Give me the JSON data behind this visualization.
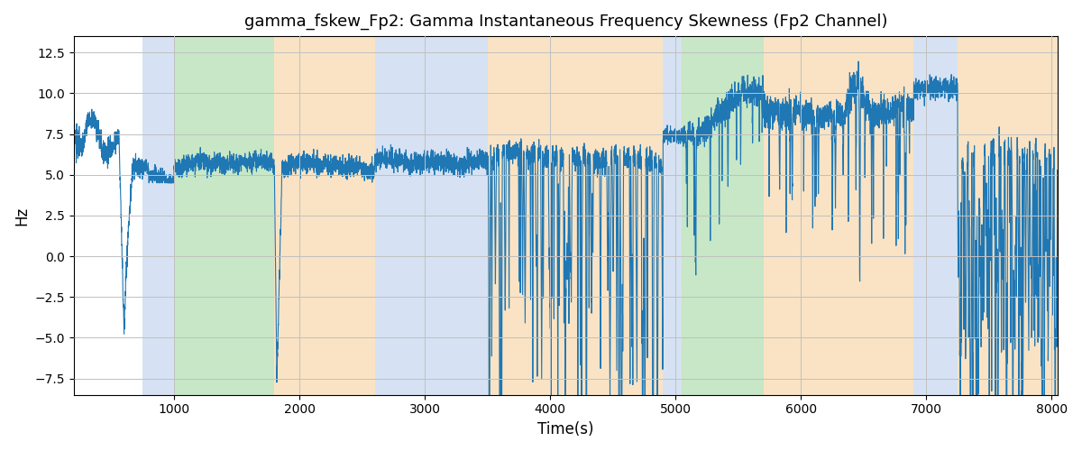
{
  "title": "gamma_fskew_Fp2: Gamma Instantaneous Frequency Skewness (Fp2 Channel)",
  "xlabel": "Time(s)",
  "ylabel": "Hz",
  "xlim": [
    200,
    8050
  ],
  "ylim": [
    -8.5,
    13.5
  ],
  "yticks": [
    -7.5,
    -5.0,
    -2.5,
    0.0,
    2.5,
    5.0,
    7.5,
    10.0,
    12.5
  ],
  "xticks": [
    1000,
    2000,
    3000,
    4000,
    5000,
    6000,
    7000,
    8000
  ],
  "line_color": "#1f77b4",
  "line_width": 0.8,
  "background_color": "#ffffff",
  "grid_color": "#c0c0c0",
  "bands": [
    {
      "xmin": 750,
      "xmax": 1000,
      "color": "#aec6e8",
      "alpha": 0.5
    },
    {
      "xmin": 1000,
      "xmax": 1800,
      "color": "#90d090",
      "alpha": 0.5
    },
    {
      "xmin": 1800,
      "xmax": 2600,
      "color": "#f5c98a",
      "alpha": 0.5
    },
    {
      "xmin": 2600,
      "xmax": 3500,
      "color": "#aec6e8",
      "alpha": 0.5
    },
    {
      "xmin": 3500,
      "xmax": 4900,
      "color": "#f5c98a",
      "alpha": 0.5
    },
    {
      "xmin": 4900,
      "xmax": 5050,
      "color": "#aec6e8",
      "alpha": 0.5
    },
    {
      "xmin": 5050,
      "xmax": 5700,
      "color": "#90d090",
      "alpha": 0.5
    },
    {
      "xmin": 5700,
      "xmax": 6900,
      "color": "#f5c98a",
      "alpha": 0.5
    },
    {
      "xmin": 6900,
      "xmax": 7250,
      "color": "#aec6e8",
      "alpha": 0.5
    },
    {
      "xmin": 7250,
      "xmax": 8100,
      "color": "#f5c98a",
      "alpha": 0.5
    }
  ],
  "figsize": [
    12.0,
    5.0
  ],
  "dpi": 100
}
